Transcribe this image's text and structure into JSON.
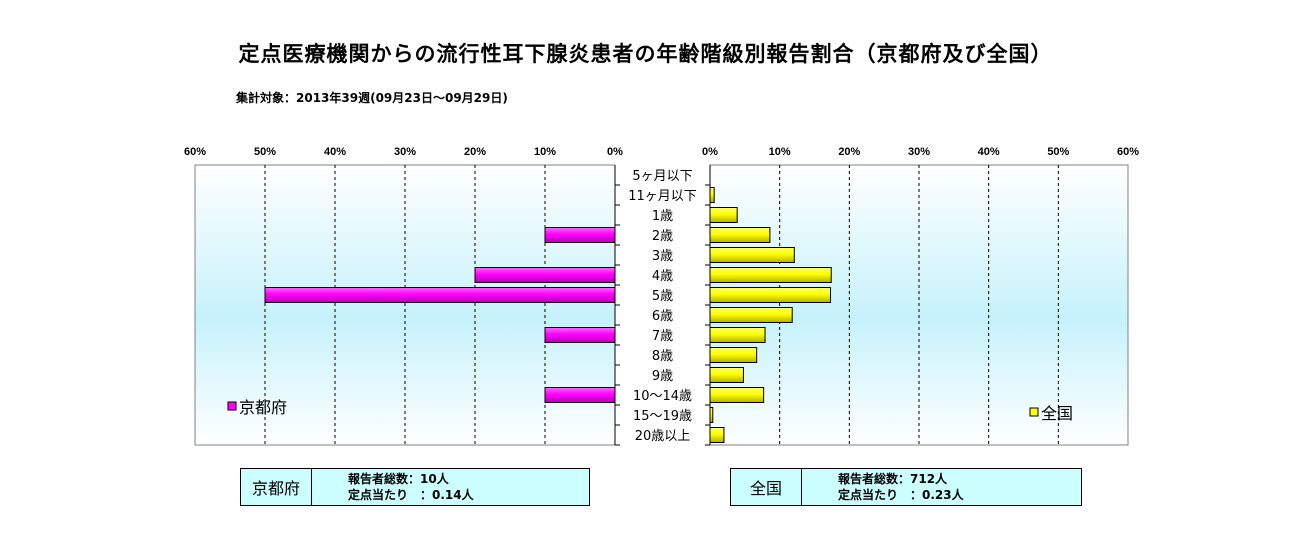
{
  "title": "定点医療機関からの流行性耳下腺炎患者の年齢階級別報告割合（京都府及び全国）",
  "subtitle": "集計対象：2013年39週(09月23日～09月29日)",
  "colors": {
    "kyoto": "#ff00ff",
    "national": "#ffff00",
    "plot_top": "#ffffff",
    "plot_mid": "#c6f2fb",
    "box_bg": "#ccffff"
  },
  "chart_data": {
    "type": "bar",
    "orientation": "horizontal-butterfly",
    "categories": [
      "5ヶ月以下",
      "11ヶ月以下",
      "1歳",
      "2歳",
      "3歳",
      "4歳",
      "5歳",
      "6歳",
      "7歳",
      "8歳",
      "9歳",
      "10～14歳",
      "15～19歳",
      "20歳以上"
    ],
    "series": [
      {
        "name": "京都府",
        "values": [
          0,
          0,
          0,
          10,
          0,
          20,
          50,
          0,
          10,
          0,
          0,
          10,
          0,
          0
        ]
      },
      {
        "name": "全国",
        "values": [
          0,
          0.6,
          3.9,
          8.6,
          12.1,
          17.4,
          17.3,
          11.8,
          7.9,
          6.7,
          4.8,
          7.7,
          0.4,
          2.0
        ]
      }
    ],
    "left_ticks": [
      "60%",
      "50%",
      "40%",
      "30%",
      "20%",
      "10%",
      "0%"
    ],
    "right_ticks": [
      "0%",
      "10%",
      "20%",
      "30%",
      "40%",
      "50%",
      "60%"
    ],
    "xlim": [
      0,
      60
    ],
    "grid": true,
    "legend": {
      "kyoto": "京都府",
      "national": "全国",
      "kyoto_placement": "bottom-left",
      "national_placement": "bottom-right"
    }
  },
  "summary": {
    "kyoto": {
      "name": "京都府",
      "line1": "報告者総数：10人",
      "line2": "定点当たり　：0.14人"
    },
    "national": {
      "name": "全国",
      "line1": "報告者総数：712人",
      "line2": "定点当たり　：0.23人"
    }
  }
}
